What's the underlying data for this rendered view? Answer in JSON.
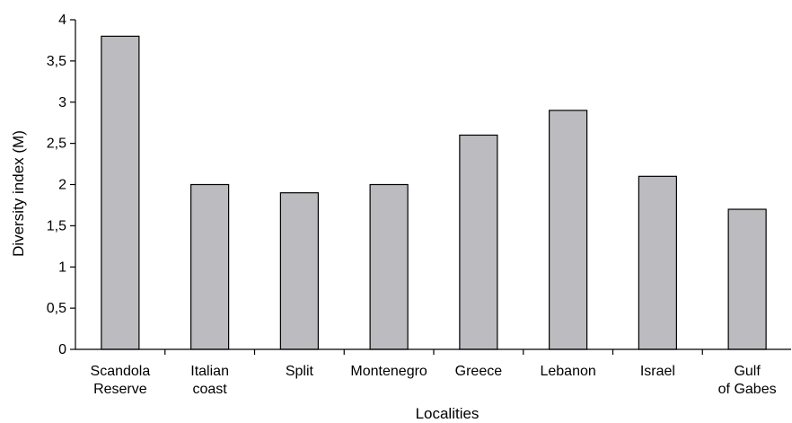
{
  "chart_data": {
    "type": "bar",
    "title": "",
    "xlabel": "Localities",
    "ylabel": "Diversity index (M)",
    "ylim": [
      0,
      4
    ],
    "yticks": [
      0,
      0.5,
      1,
      1.5,
      2,
      2.5,
      3,
      3.5,
      4
    ],
    "ytick_labels": [
      "0",
      "0,5",
      "1",
      "1,5",
      "2",
      "2,5",
      "3",
      "3,5",
      "4"
    ],
    "categories": [
      [
        "Scandola",
        "Reserve"
      ],
      [
        "Italian",
        "coast"
      ],
      [
        "Split"
      ],
      [
        "Montenegro"
      ],
      [
        "Greece"
      ],
      [
        "Lebanon"
      ],
      [
        "Israel"
      ],
      [
        "Gulf",
        "of Gabes"
      ]
    ],
    "values": [
      3.8,
      2.0,
      1.9,
      2.0,
      2.6,
      2.9,
      2.1,
      1.7
    ],
    "bar_color": "#bcbcc0",
    "grid": false,
    "legend": "none"
  }
}
